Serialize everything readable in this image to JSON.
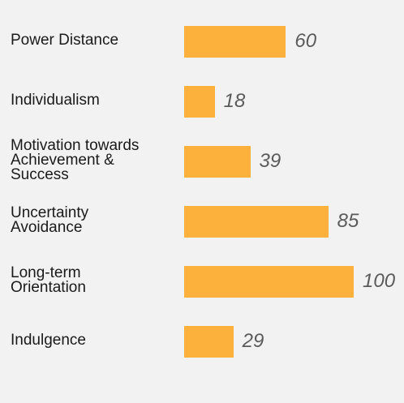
{
  "chart_data": {
    "type": "bar",
    "orientation": "horizontal",
    "categories": [
      "Power Distance",
      "Individualism",
      "Motivation towards\nAchievement &\nSuccess",
      "Uncertainty\nAvoidance",
      "Long-term\nOrientation",
      "Indulgence"
    ],
    "values": [
      60,
      18,
      39,
      85,
      100,
      29
    ],
    "xlim": [
      0,
      100
    ],
    "grid": false,
    "legend": "none",
    "bar_color": "#fbb13c",
    "background": "#f2f2f2"
  }
}
